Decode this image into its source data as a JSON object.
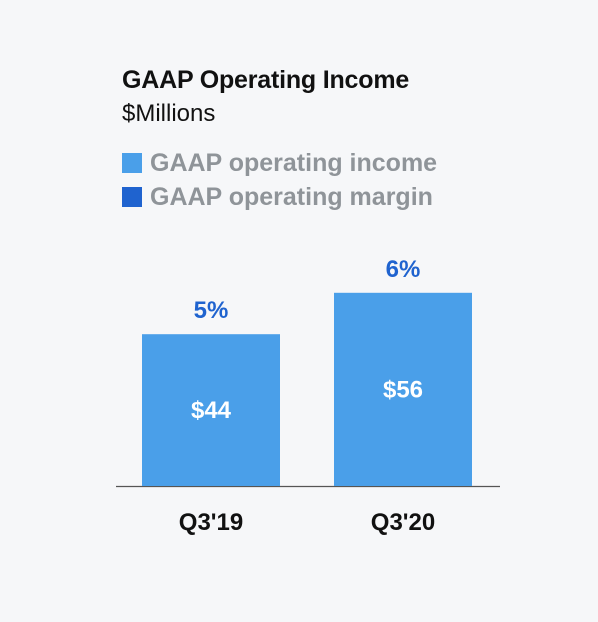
{
  "chart_data": {
    "type": "bar",
    "title": "GAAP Operating Income",
    "subtitle": "$Millions",
    "categories": [
      "Q3'19",
      "Q3'20"
    ],
    "series": [
      {
        "name": "GAAP operating income",
        "values": [
          44,
          56
        ],
        "value_labels": [
          "$44",
          "$56"
        ],
        "color": "#4a9fe9"
      },
      {
        "name": "GAAP operating margin",
        "values": [
          5,
          6
        ],
        "value_labels": [
          "5%",
          "6%"
        ],
        "color": "#1f63cf"
      }
    ],
    "ylim": [
      0,
      65
    ],
    "grid": false,
    "legend_position": "top-left"
  }
}
